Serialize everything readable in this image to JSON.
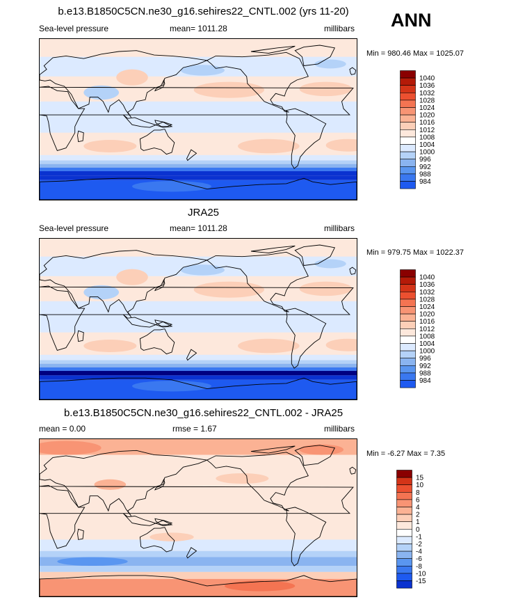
{
  "season": "ANN",
  "colors": {
    "abs_scale": [
      "#00007f",
      "#0a32d0",
      "#1e5af0",
      "#3a78f0",
      "#5a96f0",
      "#8ab4f0",
      "#b4d2f8",
      "#dceaff",
      "#ffffff",
      "#fde8dc",
      "#fccfb8",
      "#fbb294",
      "#f89474",
      "#f47452",
      "#ec5030",
      "#d43418",
      "#b41a08",
      "#8a0000"
    ],
    "diff_scale": [
      "#00007f",
      "#0a32d0",
      "#1e5af0",
      "#3a78f0",
      "#5a96f0",
      "#8ab4f0",
      "#b4d2f8",
      "#dceaff",
      "#ffffff",
      "#fde8dc",
      "#fccfb8",
      "#fbb294",
      "#f89474",
      "#f47452",
      "#ec5030",
      "#d43418",
      "#8a0000"
    ],
    "coastline": "#000000"
  },
  "chart_data": [
    {
      "type": "heatmap",
      "title": "b.e13.B1850C5CN.ne30_g16.sehires22_CNTL.002 (yrs 11-20)",
      "left_label": "Sea-level pressure",
      "center_label": "mean= 1011.28",
      "right_label": "millibars",
      "minmax": "Min = 980.46 Max = 1025.07",
      "mean": 1011.28,
      "min": 980.46,
      "max": 1025.07,
      "colorbar_levels": [
        "1040",
        "1036",
        "1032",
        "1028",
        "1024",
        "1020",
        "1016",
        "1012",
        "1008",
        "1004",
        "1000",
        "996",
        "992",
        "988",
        "984"
      ]
    },
    {
      "type": "heatmap",
      "title": "JRA25",
      "left_label": "Sea-level pressure",
      "center_label": "mean= 1011.28",
      "right_label": "millibars",
      "minmax": "Min = 979.75 Max = 1022.37",
      "mean": 1011.28,
      "min": 979.75,
      "max": 1022.37,
      "colorbar_levels": [
        "1040",
        "1036",
        "1032",
        "1028",
        "1024",
        "1020",
        "1016",
        "1012",
        "1008",
        "1004",
        "1000",
        "996",
        "992",
        "988",
        "984"
      ]
    },
    {
      "type": "heatmap",
      "title": "b.e13.B1850C5CN.ne30_g16.sehires22_CNTL.002 - JRA25",
      "left_label": "mean =   0.00",
      "center_label": "rmse =   1.67",
      "right_label": "millibars",
      "minmax": "Min =  -6.27 Max =   7.35",
      "mean": 0.0,
      "rmse": 1.67,
      "min": -6.27,
      "max": 7.35,
      "colorbar_levels": [
        "15",
        "10",
        "8",
        "6",
        "4",
        "2",
        "1",
        "0",
        "-1",
        "-2",
        "-4",
        "-6",
        "-8",
        "-10",
        "-15"
      ]
    }
  ]
}
